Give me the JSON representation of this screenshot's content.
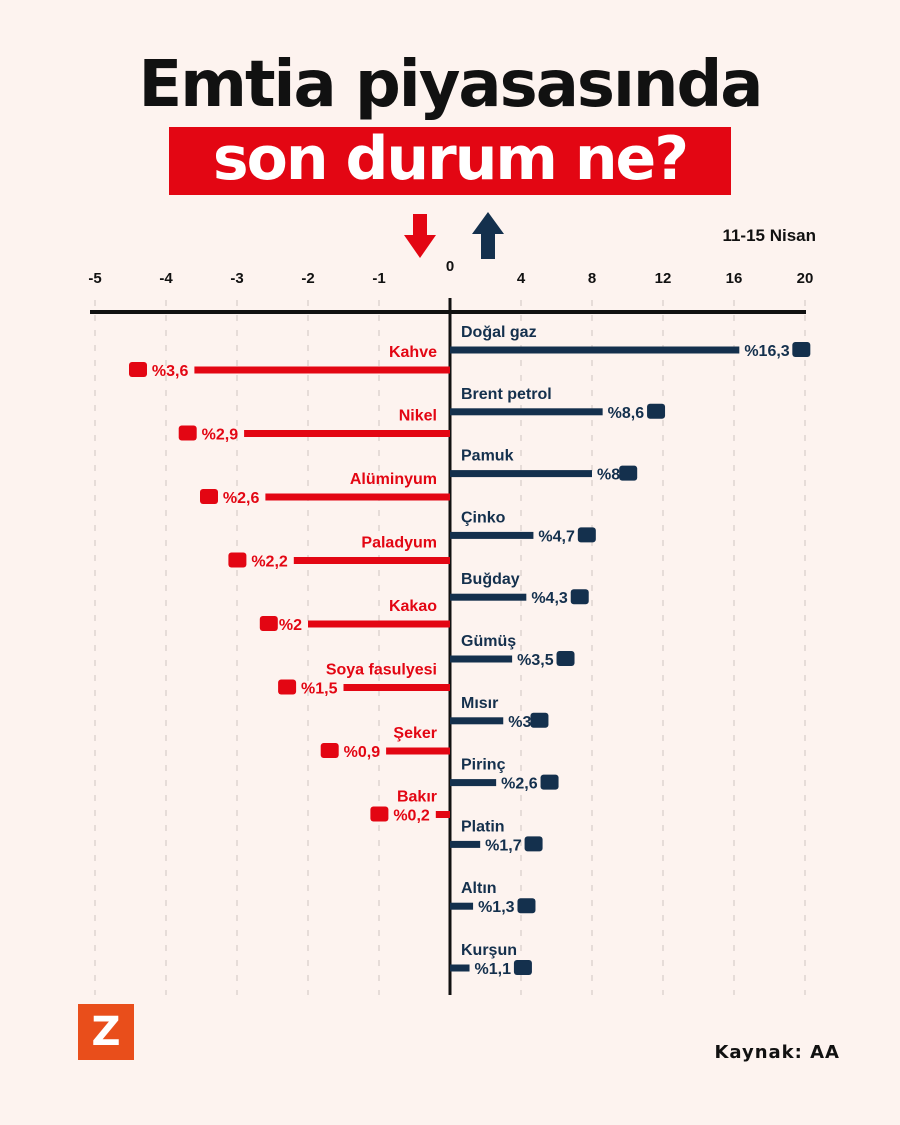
{
  "title_line1": "Emtia piyasasında",
  "title_line2": "son durum ne?",
  "period": "11-15 Nisan",
  "source_label": "Kaynak:",
  "source": "AA",
  "logo": "Z",
  "colors": {
    "negative": "#e30613",
    "positive": "#14304d",
    "background": "#fdf3ef",
    "logo": "#e94e1b"
  },
  "chart_data": {
    "type": "bar",
    "orientation": "horizontal",
    "unit": "%",
    "negative_axis": {
      "ticks": [
        -5,
        -4,
        -3,
        -2,
        -1,
        0
      ]
    },
    "positive_axis": {
      "ticks": [
        0,
        4,
        8,
        12,
        16,
        20
      ]
    },
    "grid": true,
    "positive": [
      {
        "name": "Doğal gaz",
        "value": 16.3,
        "label": "%16,3",
        "icon": "gas-flame-icon"
      },
      {
        "name": "Brent petrol",
        "value": 8.6,
        "label": "%8,6",
        "icon": "oil-barrel-icon"
      },
      {
        "name": "Pamuk",
        "value": 8,
        "label": "%8",
        "icon": "cotton-icon"
      },
      {
        "name": "Çinko",
        "value": 4.7,
        "label": "%4,7",
        "icon": "ore-icon"
      },
      {
        "name": "Buğday",
        "value": 4.3,
        "label": "%4,3",
        "icon": "wheat-icon"
      },
      {
        "name": "Gümüş",
        "value": 3.5,
        "label": "%3,5",
        "icon": "ingots-icon"
      },
      {
        "name": "Mısır",
        "value": 3,
        "label": "%3",
        "icon": "corn-icon"
      },
      {
        "name": "Pirinç",
        "value": 2.6,
        "label": "%2,6",
        "icon": "rice-sack-icon"
      },
      {
        "name": "Platin",
        "value": 1.7,
        "label": "%1,7",
        "icon": "ingots-icon"
      },
      {
        "name": "Altın",
        "value": 1.3,
        "label": "%1,3",
        "icon": "ingots-icon"
      },
      {
        "name": "Kurşun",
        "value": 1.1,
        "label": "%1,1",
        "icon": "ingots-icon"
      }
    ],
    "negative": [
      {
        "name": "Kahve",
        "value": -3.6,
        "label": "%3,6",
        "icon": "coffee-beans-icon"
      },
      {
        "name": "Nikel",
        "value": -2.9,
        "label": "%2,9",
        "icon": "ingots-icon"
      },
      {
        "name": "Alüminyum",
        "value": -2.6,
        "label": "%2,6",
        "icon": "blocks-icon"
      },
      {
        "name": "Paladyum",
        "value": -2.2,
        "label": "%2,2",
        "icon": "ingots-icon"
      },
      {
        "name": "Kakao",
        "value": -2,
        "label": "%2",
        "icon": "cocoa-icon"
      },
      {
        "name": "Soya fasulyesi",
        "value": -1.5,
        "label": "%1,5",
        "icon": "soybean-icon"
      },
      {
        "name": "Şeker",
        "value": -0.9,
        "label": "%0,9",
        "icon": "sugar-sack-icon"
      },
      {
        "name": "Bakır",
        "value": -0.2,
        "label": "%0,2",
        "icon": "ingots-icon"
      }
    ]
  }
}
